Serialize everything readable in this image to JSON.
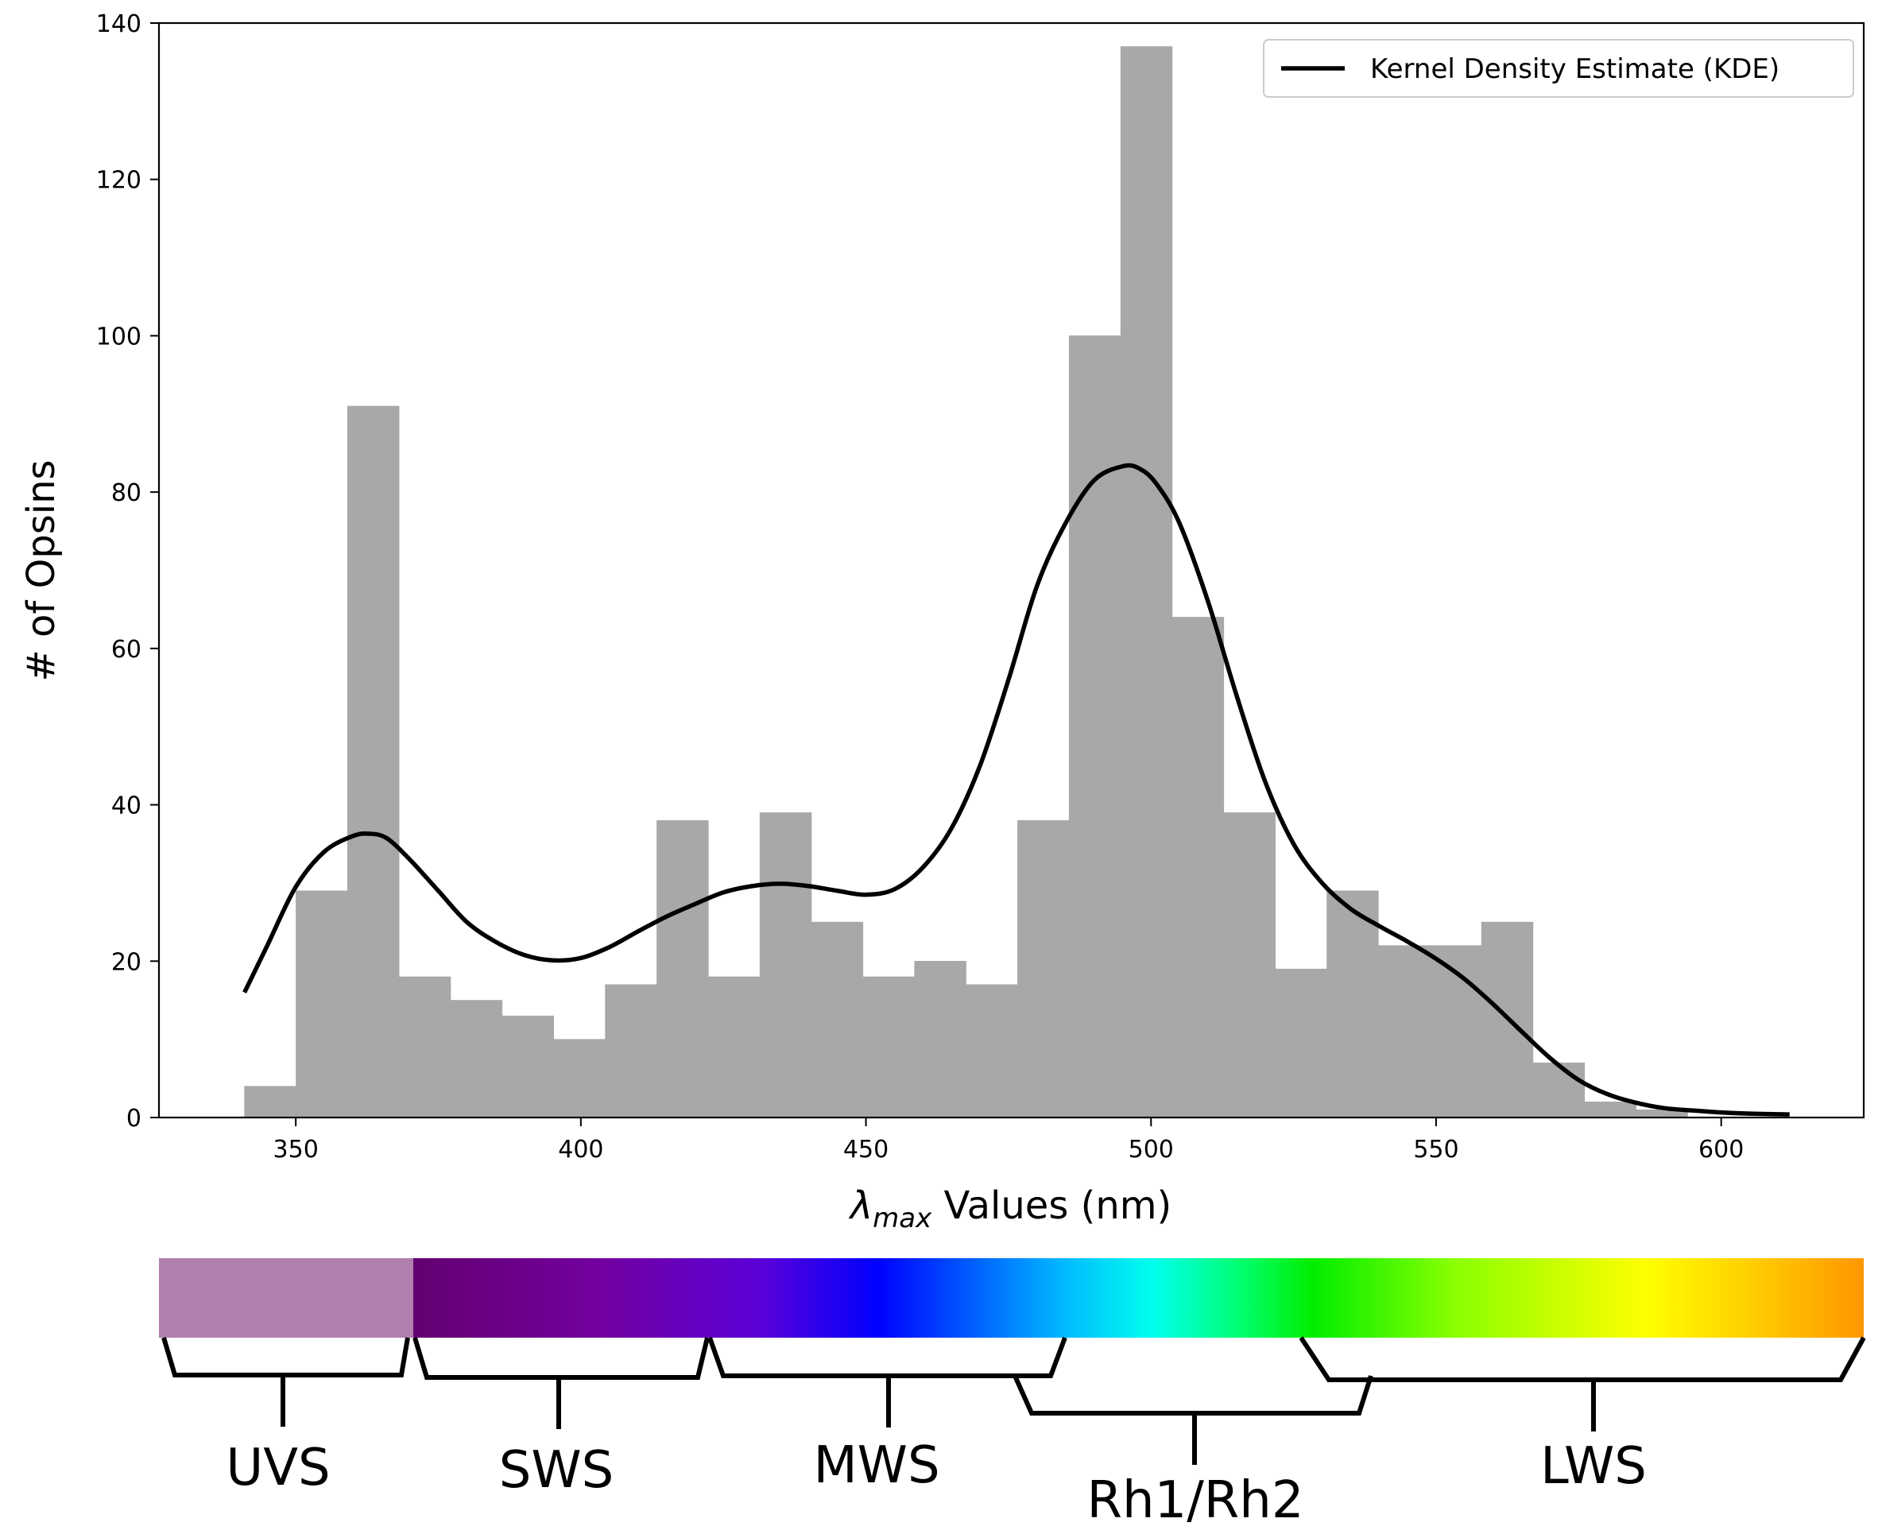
{
  "chart_data": {
    "type": "bar",
    "xlabel_symbol": "λ",
    "xlabel_subscript": "max",
    "xlabel_rest": " Values (nm)",
    "ylabel": "# of Opsins",
    "xlim": [
      326,
      625
    ],
    "ylim": [
      0,
      140
    ],
    "xticks": [
      350,
      400,
      450,
      500,
      550,
      600
    ],
    "yticks": [
      0,
      20,
      40,
      60,
      80,
      100,
      120,
      140
    ],
    "grid": false,
    "legend_position": "top-right",
    "colors": {
      "bars": "#a8a8a8",
      "kde": "#000000"
    },
    "histogram": {
      "bin_edges": [
        341,
        350.04,
        359.08,
        368.12,
        377.16,
        386.2,
        395.24,
        404.28,
        413.32,
        422.36,
        431.4,
        440.44,
        449.48,
        458.52,
        467.56,
        476.6,
        485.64,
        494.68,
        503.72,
        512.76,
        521.8,
        530.84,
        539.88,
        548.92,
        557.96,
        567,
        576.04,
        585.08,
        594.12
      ],
      "counts": [
        4,
        29,
        91,
        18,
        15,
        13,
        10,
        17,
        38,
        18,
        39,
        25,
        18,
        20,
        17,
        38,
        100,
        137,
        64,
        39,
        19,
        29,
        22,
        22,
        25,
        7,
        2,
        1
      ]
    },
    "series": [
      {
        "name": "Kernel Density Estimate (KDE)",
        "x": [
          341,
          345,
          350,
          355,
          360,
          363,
          366,
          370,
          375,
          380,
          385,
          390,
          395,
          400,
          405,
          410,
          415,
          420,
          425,
          430,
          435,
          440,
          445,
          450,
          455,
          460,
          465,
          470,
          475,
          480,
          485,
          490,
          495,
          498,
          501,
          505,
          510,
          515,
          520,
          525,
          530,
          535,
          540,
          545,
          550,
          555,
          560,
          565,
          570,
          575,
          580,
          585,
          590,
          595,
          600,
          605,
          612
        ],
        "y": [
          16,
          22,
          29.5,
          34,
          36,
          36.3,
          35.7,
          33,
          29,
          25,
          22.5,
          20.8,
          20.1,
          20.4,
          21.8,
          23.8,
          25.7,
          27.3,
          28.8,
          29.6,
          29.9,
          29.6,
          29,
          28.5,
          29.2,
          32,
          37,
          45,
          56,
          68,
          76,
          81.5,
          83.3,
          83,
          81,
          76,
          66,
          54,
          43,
          35,
          30,
          26.7,
          24.5,
          22.5,
          20.3,
          17.7,
          14.5,
          11,
          7.6,
          4.8,
          3,
          1.9,
          1.2,
          0.9,
          0.65,
          0.5,
          0.4
        ]
      }
    ],
    "spectrum_band": {
      "categories": [
        "UVS",
        "SWS",
        "MWS",
        "Rh1/Rh2",
        "LWS"
      ]
    }
  }
}
